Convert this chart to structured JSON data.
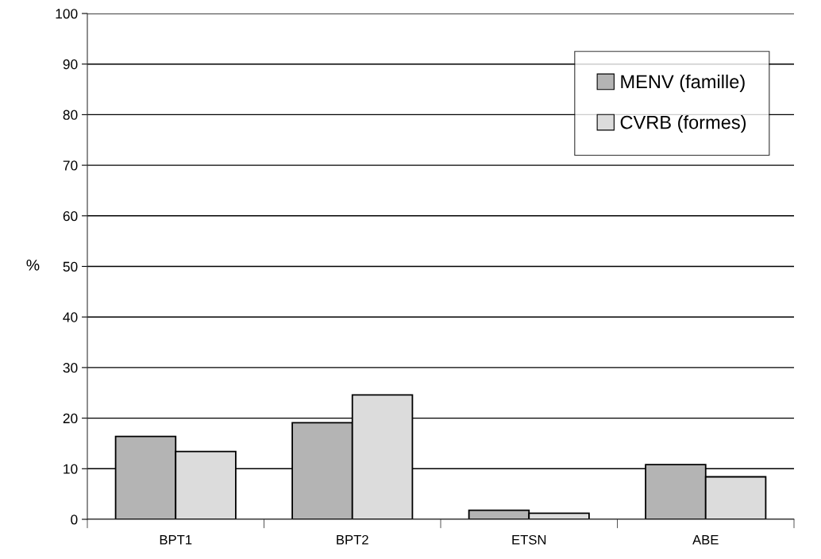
{
  "chart_data": {
    "type": "bar",
    "ylabel": "%",
    "categories": [
      "BPT1",
      "BPT2",
      "ETSN",
      "ABE"
    ],
    "series": [
      {
        "name": "MENV (famille)",
        "color": "#b4b4b4",
        "values": [
          16.4,
          19.1,
          1.8,
          10.8
        ]
      },
      {
        "name": "CVRB (formes)",
        "color": "#dcdcdc",
        "values": [
          13.4,
          24.6,
          1.2,
          8.4
        ]
      }
    ],
    "ylim": [
      0,
      100
    ],
    "yticks": [
      0,
      10,
      20,
      30,
      40,
      50,
      60,
      70,
      80,
      90,
      100
    ],
    "grid": "y",
    "legend": "top right"
  }
}
